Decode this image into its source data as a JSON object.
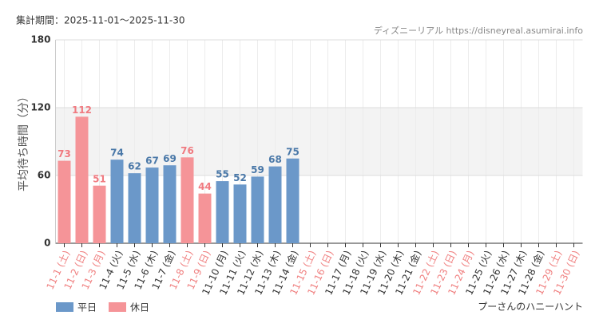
{
  "chart_data": {
    "type": "bar",
    "header": "集計期間：2025-11-01～2025-11-30",
    "source": "ディズニーリアル https://disneyreal.asumirai.info",
    "ylabel": "平均待ち時間（分）",
    "footer": "プーさんのハニーハント",
    "categories": [
      "11-1 (土)",
      "11-2 (日)",
      "11-3 (月)",
      "11-4 (火)",
      "11-5 (水)",
      "11-6 (木)",
      "11-7 (金)",
      "11-8 (土)",
      "11-9 (日)",
      "11-10 (月)",
      "11-11 (火)",
      "11-12 (水)",
      "11-13 (木)",
      "11-14 (金)",
      "11-15 (土)",
      "11-16 (日)",
      "11-17 (月)",
      "11-18 (火)",
      "11-19 (水)",
      "11-20 (木)",
      "11-21 (金)",
      "11-22 (土)",
      "11-23 (日)",
      "11-24 (月)",
      "11-25 (火)",
      "11-26 (水)",
      "11-27 (木)",
      "11-28 (金)",
      "11-29 (土)",
      "11-30 (日)"
    ],
    "category_colors": [
      "#f08080",
      "#f08080",
      "#f08080",
      "#333333",
      "#333333",
      "#333333",
      "#333333",
      "#f08080",
      "#f08080",
      "#333333",
      "#333333",
      "#333333",
      "#333333",
      "#333333",
      "#f08080",
      "#f08080",
      "#333333",
      "#333333",
      "#333333",
      "#333333",
      "#333333",
      "#f08080",
      "#f08080",
      "#f08080",
      "#333333",
      "#333333",
      "#333333",
      "#333333",
      "#f08080",
      "#f08080"
    ],
    "series": [
      {
        "name": "平日",
        "color": "#6b98c9",
        "label_color": "#4a78a8",
        "values": [
          null,
          null,
          null,
          74,
          62,
          67,
          69,
          null,
          null,
          55,
          52,
          59,
          68,
          75,
          null,
          null,
          null,
          null,
          null,
          null,
          null,
          null,
          null,
          null,
          null,
          null,
          null,
          null,
          null,
          null
        ]
      },
      {
        "name": "休日",
        "color": "#f59498",
        "label_color": "#f07a80",
        "values": [
          73,
          112,
          51,
          null,
          null,
          null,
          null,
          76,
          44,
          null,
          null,
          null,
          null,
          null,
          null,
          null,
          null,
          null,
          null,
          null,
          null,
          null,
          null,
          null,
          null,
          null,
          null,
          null,
          null,
          null
        ]
      }
    ],
    "ylim": [
      0,
      180
    ],
    "yticks": [
      0,
      60,
      120,
      180
    ],
    "shaded_band": [
      60,
      120
    ],
    "grid": true
  }
}
